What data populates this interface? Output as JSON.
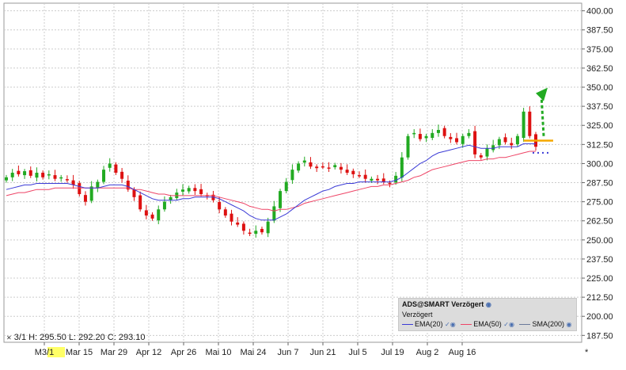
{
  "chart_data": {
    "type": "candlestick",
    "y_axis": {
      "ticks": [
        "400.00",
        "387.50",
        "375.00",
        "362.50",
        "350.00",
        "337.50",
        "325.00",
        "312.50",
        "300.00",
        "287.50",
        "275.00",
        "262.50",
        "250.00",
        "237.50",
        "225.00",
        "212.50",
        "200.00",
        "187.50"
      ],
      "ylim": [
        183,
        405
      ],
      "position": "right",
      "grid": true
    },
    "x_axis": {
      "ticks": [
        "M3/1",
        "Mar 15",
        "Mar 29",
        "Apr 12",
        "Apr 26",
        "Mai 10",
        "Mai 24",
        "Jun 7",
        "Jun 21",
        "Jul 5",
        "Jul 19",
        "Aug 2",
        "Aug 16"
      ],
      "highlighted_tick": "3/1",
      "grid": true
    },
    "legend": {
      "title": "ADS@SMART Verzögert",
      "subtitle": "Verzögert",
      "items": [
        {
          "name": "EMA(20)",
          "color": "#3b3bd6"
        },
        {
          "name": "EMA(50)",
          "color": "#ee4466"
        },
        {
          "name": "SMA(200)",
          "color": "#6a7a9a"
        }
      ],
      "placement": "bottom-right"
    },
    "ohlc_readout": "3/1  H: 295.50  L: 292.20  C: 293.10",
    "closes": [
      291,
      294,
      293,
      295,
      292,
      294,
      291,
      293,
      290,
      291,
      289,
      286,
      280,
      275,
      285,
      288,
      296,
      300,
      294,
      290,
      283,
      278,
      270,
      266,
      264,
      270,
      275,
      278,
      281,
      283,
      284,
      282,
      280,
      279,
      276,
      270,
      266,
      262,
      260,
      256,
      254,
      256,
      255,
      262,
      272,
      282,
      288,
      296,
      300,
      302,
      298,
      297,
      298,
      297,
      299,
      296,
      294,
      293,
      292,
      290,
      290,
      289,
      288,
      287,
      292,
      304,
      318,
      320,
      316,
      318,
      320,
      322,
      318,
      316,
      314,
      318,
      320,
      306,
      304,
      310,
      312,
      316,
      314,
      312,
      318,
      334,
      318,
      311
    ],
    "ema20": [
      283,
      284,
      285,
      286,
      286,
      287,
      287,
      287,
      287,
      287,
      287,
      286,
      285,
      284,
      284,
      284,
      285,
      286,
      286,
      286,
      285,
      283,
      281,
      279,
      277,
      276,
      276,
      276,
      276,
      277,
      277,
      278,
      278,
      278,
      278,
      277,
      275,
      273,
      271,
      269,
      266,
      264,
      263,
      263,
      263,
      265,
      267,
      270,
      273,
      276,
      278,
      280,
      282,
      283,
      285,
      286,
      287,
      287,
      288,
      288,
      288,
      288,
      288,
      288,
      289,
      291,
      294,
      297,
      300,
      302,
      305,
      307,
      308,
      309,
      310,
      311,
      312,
      311,
      310,
      310,
      310,
      311,
      311,
      311,
      311,
      313,
      313,
      313
    ],
    "ema50": [
      279,
      280,
      281,
      281,
      282,
      283,
      283,
      283,
      284,
      284,
      284,
      284,
      284,
      284,
      284,
      284,
      284,
      284,
      284,
      284,
      284,
      283,
      283,
      282,
      281,
      280,
      280,
      279,
      279,
      279,
      279,
      279,
      279,
      279,
      279,
      278,
      277,
      276,
      275,
      274,
      272,
      271,
      270,
      270,
      269,
      270,
      270,
      271,
      272,
      274,
      275,
      276,
      277,
      278,
      279,
      280,
      281,
      282,
      283,
      284,
      285,
      285,
      286,
      286,
      287,
      288,
      289,
      291,
      292,
      294,
      296,
      297,
      298,
      299,
      300,
      301,
      302,
      302,
      302,
      303,
      303,
      304,
      304,
      305,
      306,
      307,
      308,
      308
    ],
    "annotations": {
      "resistance_level": 315,
      "support_dots_level": 307,
      "projection_arrow": "up",
      "arrow_target": 345
    }
  },
  "colors": {
    "up": "#22aa22",
    "down": "#dd1111",
    "ema20": "#3b3bd6",
    "ema50": "#ee4466",
    "grid": "#cccccc",
    "resistance": "#f5a800",
    "arrow": "#22aa22",
    "highlight": "#ffff66"
  }
}
